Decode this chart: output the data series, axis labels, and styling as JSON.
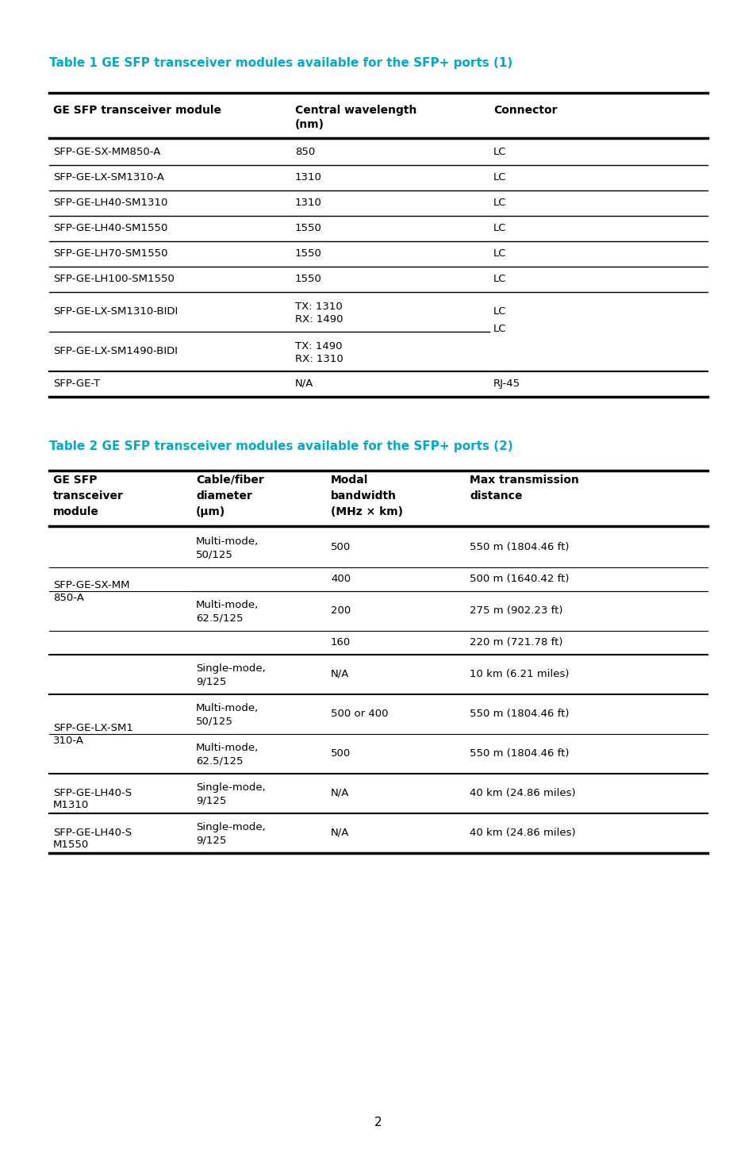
{
  "bg_color": "#ffffff",
  "text_color": "#000000",
  "header_color": "#00aacc",
  "page_number": "2",
  "table1_title": "Table 1 GE SFP transceiver modules available for the SFP+ ports (1)",
  "table1_headers": [
    "GE SFP transceiver module",
    "Central wavelength\n(nm)",
    "Connector"
  ],
  "table1_rows": [
    [
      "SFP-GE-SX-MM850-A",
      "850",
      "LC"
    ],
    [
      "SFP-GE-LX-SM1310-A",
      "1310",
      "LC"
    ],
    [
      "SFP-GE-LH40-SM1310",
      "1310",
      "LC"
    ],
    [
      "SFP-GE-LH40-SM1550",
      "1550",
      "LC"
    ],
    [
      "SFP-GE-LH70-SM1550",
      "1550",
      "LC"
    ],
    [
      "SFP-GE-LH100-SM1550",
      "1550",
      "LC"
    ],
    [
      "SFP-GE-LX-SM1310-BIDI",
      "TX: 1310\nRX: 1490",
      "LC"
    ],
    [
      "SFP-GE-LX-SM1490-BIDI",
      "TX: 1490\nRX: 1310",
      ""
    ],
    [
      "SFP-GE-T",
      "N/A",
      "RJ-45"
    ]
  ],
  "table2_title": "Table 2 GE SFP transceiver modules available for the SFP+ ports (2)",
  "table2_headers": [
    "GE SFP\ntransceiver\nmodule",
    "Cable/fiber\ndiameter\n(μm)",
    "Modal\nbandwidth\n(MHz × km)",
    "Max transmission\ndistance"
  ],
  "table2_rows": [
    [
      "",
      "Multi-mode,\n50/125",
      "500",
      "550 m (1804.46 ft)"
    ],
    [
      "SFP-GE-SX-MM\n850-A",
      "50/125",
      "400",
      "500 m (1640.42 ft)"
    ],
    [
      "",
      "Multi-mode,\n62.5/125",
      "200",
      "275 m (902.23 ft)"
    ],
    [
      "",
      "62.5/125",
      "160",
      "220 m (721.78 ft)"
    ],
    [
      "",
      "Single-mode,\n9/125",
      "N/A",
      "10 km (6.21 miles)"
    ],
    [
      "SFP-GE-LX-SM1\n310-A",
      "Multi-mode,\n50/125",
      "500 or 400",
      "550 m (1804.46 ft)"
    ],
    [
      "",
      "Multi-mode,\n62.5/125",
      "500",
      "550 m (1804.46 ft)"
    ],
    [
      "SFP-GE-LH40-S\nM1310",
      "Single-mode,\n9/125",
      "N/A",
      "40 km (24.86 miles)"
    ],
    [
      "SFP-GE-LH40-S\nM1550",
      "Single-mode,\n9/125",
      "N/A",
      "40 km (24.86 miles)"
    ]
  ]
}
